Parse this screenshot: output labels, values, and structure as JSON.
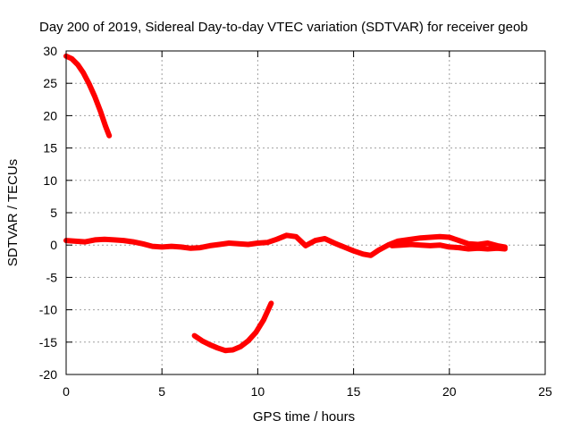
{
  "chart_data": {
    "type": "line",
    "title": "Day 200 of 2019, Sidereal Day-to-day VTEC variation (SDTVAR) for receiver geob",
    "xlabel": "GPS time / hours",
    "ylabel": "SDTVAR / TECUs",
    "xlim": [
      0,
      25
    ],
    "ylim": [
      -20,
      30
    ],
    "x_ticks": [
      0,
      5,
      10,
      15,
      20,
      25
    ],
    "y_ticks": [
      -20,
      -15,
      -10,
      -5,
      0,
      5,
      10,
      15,
      20,
      25,
      30
    ],
    "grid": true,
    "legend": "none",
    "series_color": "#ff0000",
    "series": [
      {
        "name": "high-arc",
        "points": [
          [
            0.0,
            29.2
          ],
          [
            0.3,
            28.8
          ],
          [
            0.6,
            27.9
          ],
          [
            0.9,
            26.6
          ],
          [
            1.2,
            24.9
          ],
          [
            1.5,
            22.9
          ],
          [
            1.8,
            20.6
          ],
          [
            2.05,
            18.4
          ],
          [
            2.25,
            16.9
          ]
        ]
      },
      {
        "name": "near-zero-a",
        "points": [
          [
            0.0,
            0.7
          ],
          [
            0.5,
            0.6
          ],
          [
            1.0,
            0.5
          ],
          [
            1.5,
            0.8
          ],
          [
            2.0,
            0.9
          ],
          [
            2.5,
            0.8
          ],
          [
            3.0,
            0.7
          ],
          [
            3.5,
            0.5
          ],
          [
            4.0,
            0.2
          ],
          [
            4.5,
            -0.2
          ],
          [
            5.0,
            -0.3
          ],
          [
            5.5,
            -0.2
          ],
          [
            6.0,
            -0.3
          ],
          [
            6.5,
            -0.5
          ],
          [
            7.0,
            -0.4
          ],
          [
            7.5,
            -0.1
          ],
          [
            8.0,
            0.1
          ],
          [
            8.5,
            0.3
          ],
          [
            9.0,
            0.2
          ],
          [
            9.5,
            0.1
          ],
          [
            10.0,
            0.3
          ],
          [
            10.5,
            0.4
          ],
          [
            11.0,
            0.9
          ],
          [
            11.5,
            1.5
          ],
          [
            12.0,
            1.3
          ],
          [
            12.5,
            -0.1
          ],
          [
            13.0,
            0.7
          ],
          [
            13.5,
            1.0
          ],
          [
            14.0,
            0.3
          ],
          [
            14.5,
            -0.3
          ],
          [
            15.0,
            -0.9
          ],
          [
            15.5,
            -1.4
          ],
          [
            15.9,
            -1.6
          ],
          [
            16.3,
            -0.8
          ],
          [
            16.8,
            0.0
          ],
          [
            17.3,
            0.6
          ],
          [
            18.0,
            0.9
          ],
          [
            18.5,
            1.1
          ],
          [
            19.0,
            1.2
          ],
          [
            19.5,
            1.3
          ],
          [
            20.0,
            1.2
          ],
          [
            20.5,
            0.7
          ],
          [
            21.0,
            0.2
          ],
          [
            21.5,
            0.1
          ],
          [
            22.0,
            0.3
          ],
          [
            22.5,
            -0.1
          ],
          [
            22.9,
            -0.3
          ]
        ]
      },
      {
        "name": "near-zero-b",
        "points": [
          [
            17.0,
            -0.1
          ],
          [
            17.5,
            0.0
          ],
          [
            18.0,
            0.1
          ],
          [
            18.5,
            0.0
          ],
          [
            19.0,
            -0.1
          ],
          [
            19.5,
            0.0
          ],
          [
            20.0,
            -0.3
          ],
          [
            20.5,
            -0.4
          ],
          [
            21.0,
            -0.6
          ],
          [
            21.5,
            -0.5
          ],
          [
            22.0,
            -0.6
          ],
          [
            22.5,
            -0.5
          ],
          [
            22.9,
            -0.6
          ]
        ]
      },
      {
        "name": "low-arc",
        "points": [
          [
            6.7,
            -14.0
          ],
          [
            7.1,
            -14.8
          ],
          [
            7.5,
            -15.4
          ],
          [
            7.9,
            -15.9
          ],
          [
            8.3,
            -16.3
          ],
          [
            8.7,
            -16.2
          ],
          [
            9.1,
            -15.7
          ],
          [
            9.5,
            -14.8
          ],
          [
            9.9,
            -13.5
          ],
          [
            10.3,
            -11.6
          ],
          [
            10.7,
            -9.0
          ]
        ]
      }
    ]
  }
}
